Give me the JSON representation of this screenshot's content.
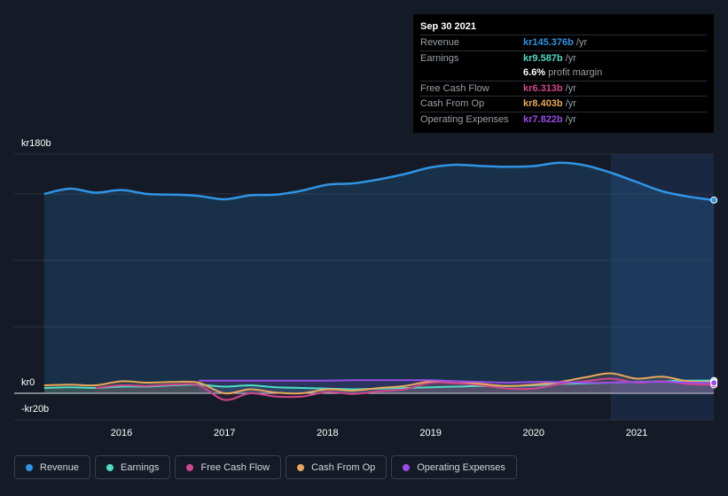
{
  "tooltip": {
    "date": "Sep 30 2021",
    "rows": [
      {
        "label": "Revenue",
        "value": "kr145.376b",
        "unit": "/yr",
        "color": "#2f94e6"
      },
      {
        "label": "Earnings",
        "value": "kr9.587b",
        "unit": "/yr",
        "color": "#4fdcc5"
      },
      {
        "label": "",
        "value": "6.6%",
        "unit": "profit margin",
        "color": "#ffffff"
      },
      {
        "label": "Free Cash Flow",
        "value": "kr6.313b",
        "unit": "/yr",
        "color": "#d0468e"
      },
      {
        "label": "Cash From Op",
        "value": "kr8.403b",
        "unit": "/yr",
        "color": "#e9a75b"
      },
      {
        "label": "Operating Expenses",
        "value": "kr7.822b",
        "unit": "/yr",
        "color": "#9a4be6"
      }
    ]
  },
  "legend": [
    {
      "label": "Revenue",
      "color": "#2f94e6"
    },
    {
      "label": "Earnings",
      "color": "#4fdcc5"
    },
    {
      "label": "Free Cash Flow",
      "color": "#d0468e"
    },
    {
      "label": "Cash From Op",
      "color": "#e9a75b"
    },
    {
      "label": "Operating Expenses",
      "color": "#9a4be6"
    }
  ],
  "chart_data": {
    "type": "area",
    "x_tick_labels": [
      "2016",
      "2017",
      "2018",
      "2019",
      "2020",
      "2021"
    ],
    "y_tick_labels": [
      "kr180b",
      "kr0",
      "-kr20b"
    ],
    "ylim": [
      -20,
      180
    ],
    "y_unit": "kr billions",
    "grid": true,
    "legend_position": "bottom",
    "highlight_start": 2020.75,
    "series": [
      {
        "name": "Revenue",
        "color": "#2f94e6",
        "x": [
          2015.25,
          2015.5,
          2015.75,
          2016.0,
          2016.25,
          2016.5,
          2016.75,
          2017.0,
          2017.25,
          2017.5,
          2017.75,
          2018.0,
          2018.25,
          2018.5,
          2018.75,
          2019.0,
          2019.25,
          2019.5,
          2019.75,
          2020.0,
          2020.25,
          2020.5,
          2020.75,
          2021.0,
          2021.25,
          2021.5,
          2021.75
        ],
        "y": [
          150,
          154,
          151,
          153,
          150,
          149.5,
          148.5,
          146,
          149,
          149.5,
          152.5,
          157,
          158,
          161,
          165,
          170,
          172,
          171,
          170.5,
          171,
          173.5,
          171.5,
          166,
          159,
          152,
          148,
          145.4
        ]
      },
      {
        "name": "Earnings",
        "color": "#4fdcc5",
        "x": [
          2015.25,
          2015.5,
          2015.75,
          2016.0,
          2016.25,
          2016.5,
          2016.75,
          2017.0,
          2017.25,
          2017.5,
          2017.75,
          2018.0,
          2018.25,
          2018.5,
          2018.75,
          2019.0,
          2019.25,
          2019.5,
          2019.75,
          2020.0,
          2020.25,
          2020.5,
          2020.75,
          2021.0,
          2021.25,
          2021.5,
          2021.75
        ],
        "y": [
          4,
          4.5,
          4,
          5,
          5,
          6,
          6.5,
          5,
          6,
          4.5,
          4,
          3.5,
          3,
          3.5,
          4,
          4.5,
          5,
          5.5,
          5.5,
          6,
          7,
          7.5,
          8,
          8.5,
          9,
          9.5,
          9.6
        ]
      },
      {
        "name": "Free Cash Flow",
        "color": "#d0468e",
        "x": [
          2015.75,
          2016.0,
          2016.25,
          2016.5,
          2016.75,
          2017.0,
          2017.25,
          2017.5,
          2017.75,
          2018.0,
          2018.25,
          2018.5,
          2018.75,
          2019.0,
          2019.25,
          2019.5,
          2019.75,
          2020.0,
          2020.25,
          2020.5,
          2020.75,
          2021.0,
          2021.25,
          2021.5,
          2021.75
        ],
        "y": [
          4,
          6,
          5.5,
          6.5,
          6,
          -5,
          0,
          -2.5,
          -2.5,
          1,
          -0.5,
          1.5,
          3,
          8,
          7.5,
          6,
          3.5,
          3.5,
          7,
          9,
          11,
          8,
          9,
          7,
          6.3
        ]
      },
      {
        "name": "Cash From Op",
        "color": "#e9a75b",
        "x": [
          2015.25,
          2015.5,
          2015.75,
          2016.0,
          2016.25,
          2016.5,
          2016.75,
          2017.0,
          2017.25,
          2017.5,
          2017.75,
          2018.0,
          2018.25,
          2018.5,
          2018.75,
          2019.0,
          2019.25,
          2019.5,
          2019.75,
          2020.0,
          2020.25,
          2020.5,
          2020.75,
          2021.0,
          2021.25,
          2021.5,
          2021.75
        ],
        "y": [
          6,
          6.5,
          6,
          9,
          8,
          8.5,
          8,
          0,
          3,
          0.5,
          0,
          3,
          2,
          4,
          5.5,
          9,
          9,
          7,
          5.5,
          6.5,
          8.5,
          12,
          15,
          11,
          12.5,
          9,
          8.4
        ]
      },
      {
        "name": "Operating Expenses",
        "color": "#9a4be6",
        "x": [
          2016.75,
          2017.0,
          2017.25,
          2017.5,
          2017.75,
          2018.0,
          2018.25,
          2018.5,
          2018.75,
          2019.0,
          2019.25,
          2019.5,
          2019.75,
          2020.0,
          2020.25,
          2020.5,
          2020.75,
          2021.0,
          2021.25,
          2021.5,
          2021.75
        ],
        "y": [
          9.5,
          9.5,
          9.5,
          9.5,
          9.5,
          9.5,
          9.8,
          9.8,
          9.8,
          9.8,
          9,
          8.5,
          8,
          8.5,
          8.5,
          8,
          8,
          8.5,
          8.5,
          8,
          7.8
        ]
      }
    ]
  }
}
